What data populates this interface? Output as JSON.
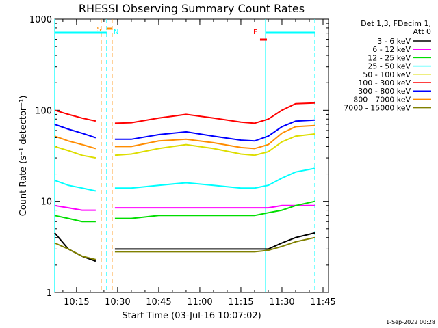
{
  "chart_data": {
    "type": "line",
    "title": "RHESSI Observing Summary Count Rates",
    "xlabel": "Start Time (03-Jul-16 10:07:02)",
    "ylabel": "Count Rate (s⁻¹ detector⁻¹)",
    "y_scale": "log",
    "ylim": [
      1,
      1000
    ],
    "xlim": [
      "10:07:02",
      "11:47:00"
    ],
    "x_tick_labels": [
      "10:15",
      "10:30",
      "10:45",
      "11:00",
      "11:15",
      "11:30",
      "11:45"
    ],
    "y_tick_labels": [
      "1",
      "10",
      "100",
      "1000"
    ],
    "grid": false,
    "legend_title": [
      "Det 1,3, FDecim 1,",
      "Att 0"
    ],
    "legend_position": "right",
    "series": [
      {
        "name": "3 - 6 keV",
        "color": "#000000",
        "x": [
          "10:07",
          "10:12",
          "10:17",
          "10:22",
          "10:29",
          "10:35",
          "10:45",
          "10:55",
          "11:05",
          "11:15",
          "11:20",
          "11:25",
          "11:30",
          "11:35",
          "11:42"
        ],
        "y": [
          4.5,
          3.0,
          2.5,
          2.2,
          3.0,
          3.0,
          3.0,
          3.0,
          3.0,
          3.0,
          3.0,
          3.0,
          3.5,
          4.0,
          4.5
        ]
      },
      {
        "name": "6 - 12 keV",
        "color": "#ff00ff",
        "x": [
          "10:07",
          "10:12",
          "10:17",
          "10:22",
          "10:29",
          "10:35",
          "10:45",
          "10:55",
          "11:05",
          "11:15",
          "11:20",
          "11:25",
          "11:30",
          "11:35",
          "11:42"
        ],
        "y": [
          9.0,
          8.5,
          8.0,
          8.0,
          8.5,
          8.5,
          8.5,
          8.5,
          8.5,
          8.5,
          8.5,
          8.5,
          9.0,
          9.0,
          9.0
        ]
      },
      {
        "name": "12 - 25 keV",
        "color": "#00dd00",
        "x": [
          "10:07",
          "10:12",
          "10:17",
          "10:22",
          "10:29",
          "10:35",
          "10:45",
          "10:55",
          "11:05",
          "11:15",
          "11:20",
          "11:25",
          "11:30",
          "11:35",
          "11:42"
        ],
        "y": [
          7.0,
          6.5,
          6.0,
          6.0,
          6.5,
          6.5,
          7.0,
          7.0,
          7.0,
          7.0,
          7.0,
          7.5,
          8.0,
          9.0,
          10.0
        ]
      },
      {
        "name": "25 - 50 keV",
        "color": "#00ffff",
        "x": [
          "10:07",
          "10:12",
          "10:17",
          "10:22",
          "10:29",
          "10:35",
          "10:45",
          "10:55",
          "11:05",
          "11:15",
          "11:20",
          "11:25",
          "11:30",
          "11:35",
          "11:42"
        ],
        "y": [
          17,
          15,
          14,
          13,
          14,
          14,
          15,
          16,
          15,
          14,
          14,
          15,
          18,
          21,
          23
        ]
      },
      {
        "name": "50 - 100 keV",
        "color": "#dddd00",
        "x": [
          "10:07",
          "10:12",
          "10:17",
          "10:22",
          "10:29",
          "10:35",
          "10:45",
          "10:55",
          "11:05",
          "11:15",
          "11:20",
          "11:25",
          "11:30",
          "11:35",
          "11:42"
        ],
        "y": [
          40,
          36,
          32,
          30,
          32,
          33,
          38,
          42,
          38,
          33,
          32,
          35,
          45,
          52,
          55
        ]
      },
      {
        "name": "100 - 300 keV",
        "color": "#ff0000",
        "x": [
          "10:07",
          "10:12",
          "10:17",
          "10:22",
          "10:29",
          "10:35",
          "10:45",
          "10:55",
          "11:05",
          "11:15",
          "11:20",
          "11:25",
          "11:30",
          "11:35",
          "11:42"
        ],
        "y": [
          100,
          90,
          82,
          76,
          72,
          73,
          82,
          90,
          82,
          74,
          72,
          80,
          100,
          118,
          120
        ]
      },
      {
        "name": "300 - 800 keV",
        "color": "#0000ff",
        "x": [
          "10:07",
          "10:12",
          "10:17",
          "10:22",
          "10:29",
          "10:35",
          "10:45",
          "10:55",
          "11:05",
          "11:15",
          "11:20",
          "11:25",
          "11:30",
          "11:35",
          "11:42"
        ],
        "y": [
          70,
          62,
          56,
          50,
          48,
          48,
          54,
          58,
          52,
          47,
          46,
          52,
          66,
          76,
          78
        ]
      },
      {
        "name": "800 - 7000 keV",
        "color": "#ff8c00",
        "x": [
          "10:07",
          "10:12",
          "10:17",
          "10:22",
          "10:29",
          "10:35",
          "10:45",
          "10:55",
          "11:05",
          "11:15",
          "11:20",
          "11:25",
          "11:30",
          "11:35",
          "11:42"
        ],
        "y": [
          52,
          46,
          42,
          38,
          40,
          40,
          46,
          48,
          44,
          39,
          38,
          42,
          56,
          66,
          68
        ]
      },
      {
        "name": "7000 - 15000 keV",
        "color": "#808000",
        "x": [
          "10:07",
          "10:12",
          "10:17",
          "10:22",
          "10:29",
          "10:35",
          "10:45",
          "10:55",
          "11:05",
          "11:15",
          "11:20",
          "11:25",
          "11:30",
          "11:35",
          "11:42"
        ],
        "y": [
          3.5,
          3.0,
          2.5,
          2.3,
          2.8,
          2.8,
          2.8,
          2.8,
          2.8,
          2.8,
          2.8,
          2.9,
          3.2,
          3.6,
          4.0
        ]
      }
    ],
    "annotations": [
      {
        "label": "S",
        "color": "#ff8c00",
        "x_start": "10:26",
        "x_end": "10:28"
      },
      {
        "label": "N",
        "color": "#00ffff",
        "x": "10:28"
      },
      {
        "label": "F",
        "color": "#ff0000",
        "x": "11:19"
      }
    ],
    "vertical_lines": [
      {
        "x": "10:07",
        "color": "#00ffff",
        "style": "solid"
      },
      {
        "x": "10:24",
        "color": "#ff8c00",
        "style": "dashed"
      },
      {
        "x": "10:26",
        "color": "#00ffff",
        "style": "dashed"
      },
      {
        "x": "10:28",
        "color": "#ff8c00",
        "style": "dashed"
      },
      {
        "x": "11:24",
        "color": "#00ffff",
        "style": "solid"
      },
      {
        "x": "11:42",
        "color": "#00ffff",
        "style": "dashed"
      }
    ]
  },
  "timestamp": "1-Sep-2022 00:28"
}
